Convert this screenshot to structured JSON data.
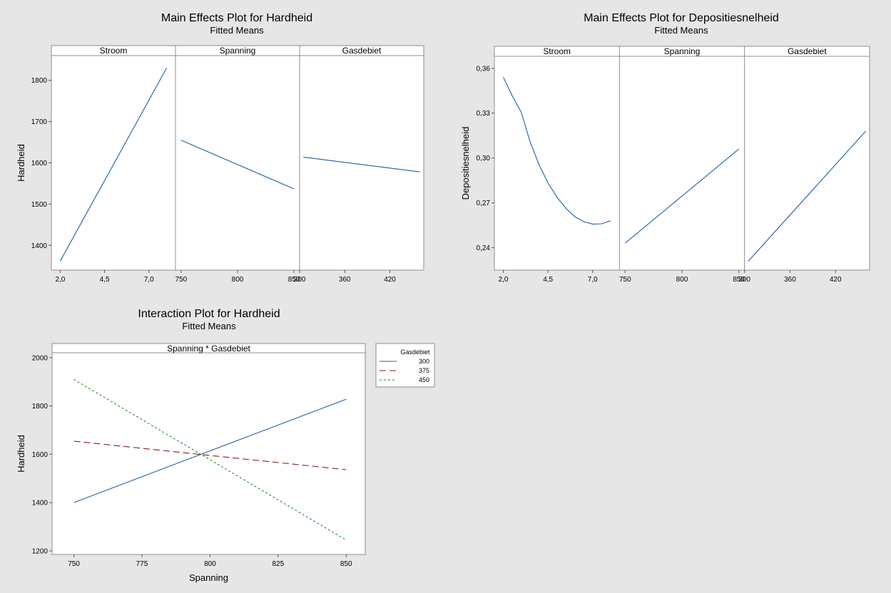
{
  "chart_data": [
    {
      "type": "line",
      "title": "Main Effects Plot for Hardheid",
      "subtitle": "Fitted Means",
      "ylabel": "Hardheid",
      "ylim": [
        1340,
        1860
      ],
      "yticks": [
        1400,
        1500,
        1600,
        1700,
        1800
      ],
      "panels": [
        {
          "strip": "Stroom",
          "xlim": [
            1.5,
            8.5
          ],
          "xticks": [
            "2,0",
            "4,5",
            "7,0"
          ],
          "xtick_values": [
            2.0,
            4.5,
            7.0
          ],
          "series": [
            {
              "color": "#1f5fa6",
              "x": [
                2.0,
                8.0
              ],
              "y": [
                1362,
                1830
              ]
            }
          ]
        },
        {
          "strip": "Spanning",
          "xlim": [
            745,
            855
          ],
          "xticks": [
            "750",
            "800",
            "850"
          ],
          "xtick_values": [
            750,
            800,
            850
          ],
          "series": [
            {
              "color": "#1f5fa6",
              "x": [
                750,
                850
              ],
              "y": [
                1655,
                1537
              ]
            }
          ]
        },
        {
          "strip": "Gasdebiet",
          "xlim": [
            300,
            465
          ],
          "xticks": [
            "300",
            "360",
            "420"
          ],
          "xtick_values": [
            300,
            360,
            420
          ],
          "series": [
            {
              "color": "#1f5fa6",
              "x": [
                305,
                460
              ],
              "y": [
                1614,
                1578
              ]
            }
          ]
        }
      ]
    },
    {
      "type": "line",
      "title": "Main Effects Plot for Depositiesnelheid",
      "subtitle": "Fitted Means",
      "ylabel": "Depositiesnelheid",
      "ylim": [
        0.225,
        0.368
      ],
      "yticks": [
        "0,24",
        "0,27",
        "0,30",
        "0,33",
        "0,36"
      ],
      "ytick_values": [
        0.24,
        0.27,
        0.3,
        0.33,
        0.36
      ],
      "panels": [
        {
          "strip": "Stroom",
          "xlim": [
            1.5,
            8.5
          ],
          "xticks": [
            "2,0",
            "4,5",
            "7,0"
          ],
          "xtick_values": [
            2.0,
            4.5,
            7.0
          ],
          "series": [
            {
              "color": "#1f5fa6",
              "x": [
                2.0,
                2.5,
                3.0,
                3.5,
                4.0,
                4.5,
                5.0,
                5.5,
                6.0,
                6.5,
                7.0,
                7.5,
                8.0
              ],
              "y": [
                0.354,
                0.3416,
                0.3307,
                0.3108,
                0.2955,
                0.2834,
                0.2738,
                0.2664,
                0.2608,
                0.2574,
                0.2558,
                0.256,
                0.258
              ]
            }
          ]
        },
        {
          "strip": "Spanning",
          "xlim": [
            745,
            855
          ],
          "xticks": [
            "750",
            "800",
            "850"
          ],
          "xtick_values": [
            750,
            800,
            850
          ],
          "series": [
            {
              "color": "#1f5fa6",
              "x": [
                750,
                850
              ],
              "y": [
                0.243,
                0.306
              ]
            }
          ]
        },
        {
          "strip": "Gasdebiet",
          "xlim": [
            300,
            465
          ],
          "xticks": [
            "300",
            "360",
            "420"
          ],
          "xtick_values": [
            300,
            360,
            420
          ],
          "series": [
            {
              "color": "#1f5fa6",
              "x": [
                305,
                460
              ],
              "y": [
                0.231,
                0.318
              ]
            }
          ]
        }
      ]
    },
    {
      "type": "line",
      "title": "Interaction Plot for Hardheid",
      "subtitle": "Fitted Means",
      "strip": "Spanning * Gasdebiet",
      "xlabel": "Spanning",
      "ylabel": "Hardheid",
      "xlim": [
        742,
        857
      ],
      "ylim": [
        1185,
        2020
      ],
      "xticks": [
        750,
        775,
        800,
        825,
        850
      ],
      "yticks": [
        1200,
        1400,
        1600,
        1800,
        2000
      ],
      "legend_title": "Gasdebiet",
      "legend_placement": "right",
      "series": [
        {
          "name": "300",
          "color": "#1f5fa6",
          "dash": "solid",
          "x": [
            750,
            850
          ],
          "y": [
            1400,
            1828
          ]
        },
        {
          "name": "375",
          "color": "#8b1a1a",
          "dash": "long-dash",
          "x": [
            750,
            850
          ],
          "y": [
            1654,
            1536
          ]
        },
        {
          "name": "450",
          "color": "#1e8a2a",
          "dash": "short-dash",
          "x": [
            750,
            850
          ],
          "y": [
            1910,
            1245
          ]
        }
      ]
    }
  ]
}
